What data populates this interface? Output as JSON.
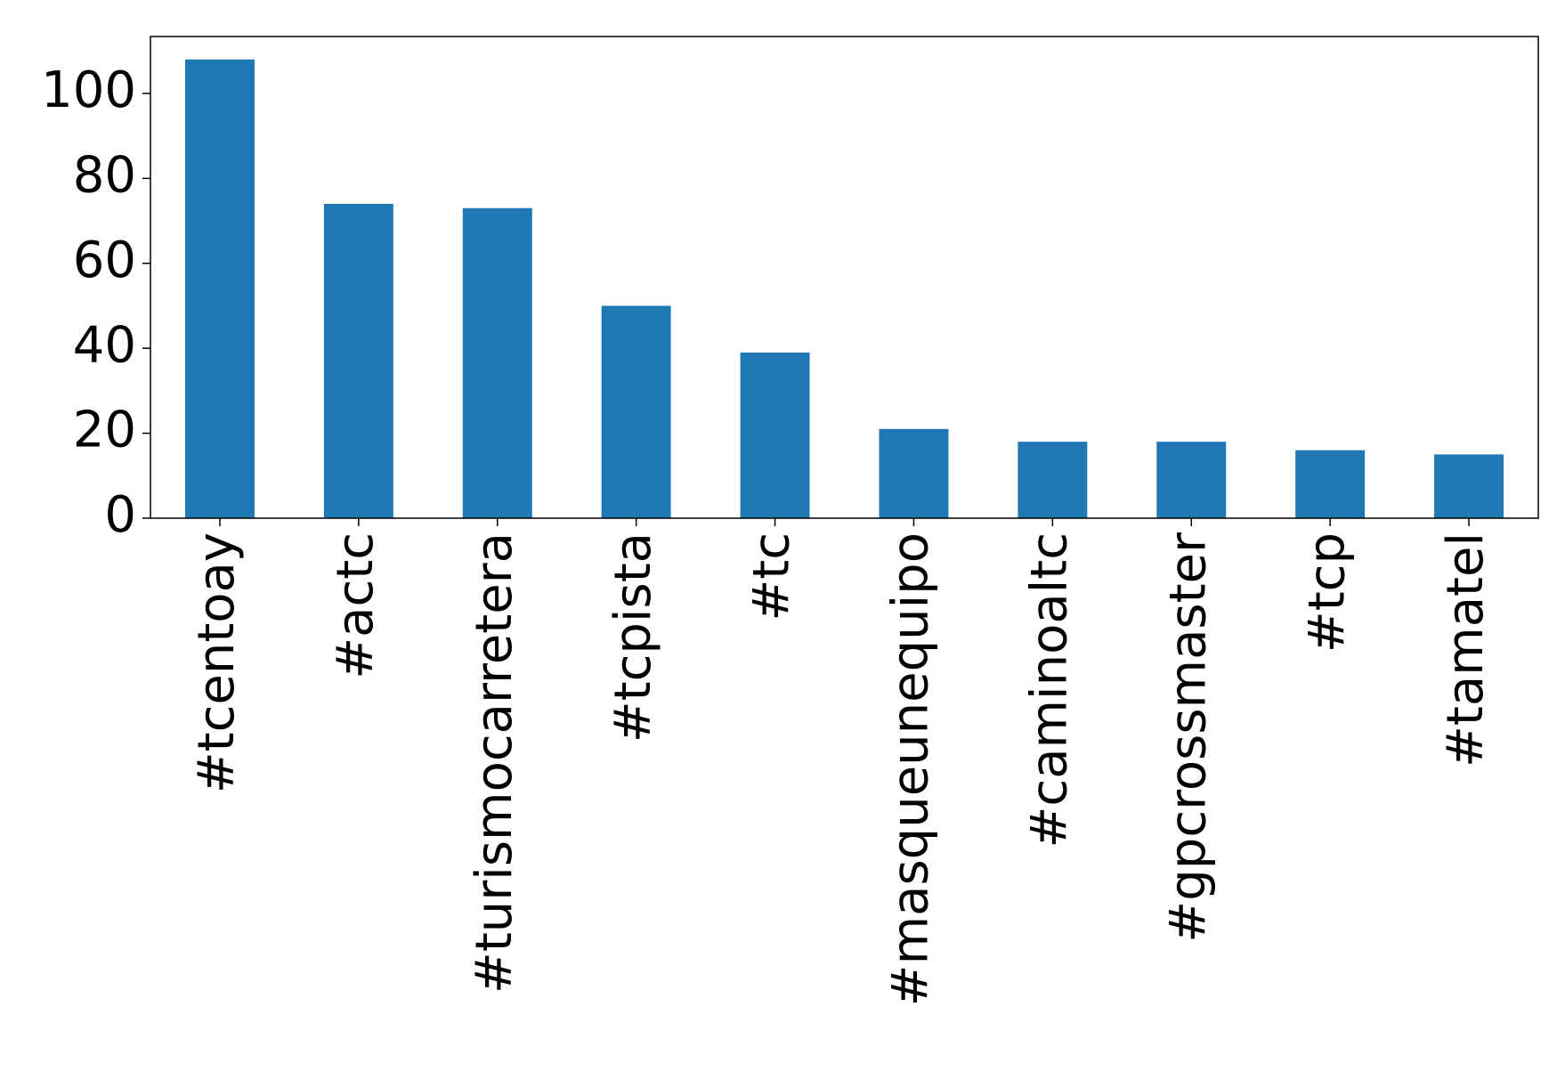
{
  "chart_data": {
    "type": "bar",
    "categories": [
      "#tcentoay",
      "#actc",
      "#turismocarretera",
      "#tcpista",
      "#tc",
      "#masqueunequipo",
      "#caminoaltc",
      "#gpcrossmaster",
      "#tcp",
      "#tamatel"
    ],
    "values": [
      108,
      74,
      73,
      50,
      39,
      21,
      18,
      18,
      16,
      15
    ],
    "color": "#1f77b4",
    "ylim": [
      0,
      113.4
    ],
    "yticks": [
      0,
      20,
      40,
      60,
      80,
      100
    ],
    "grid": false
  }
}
